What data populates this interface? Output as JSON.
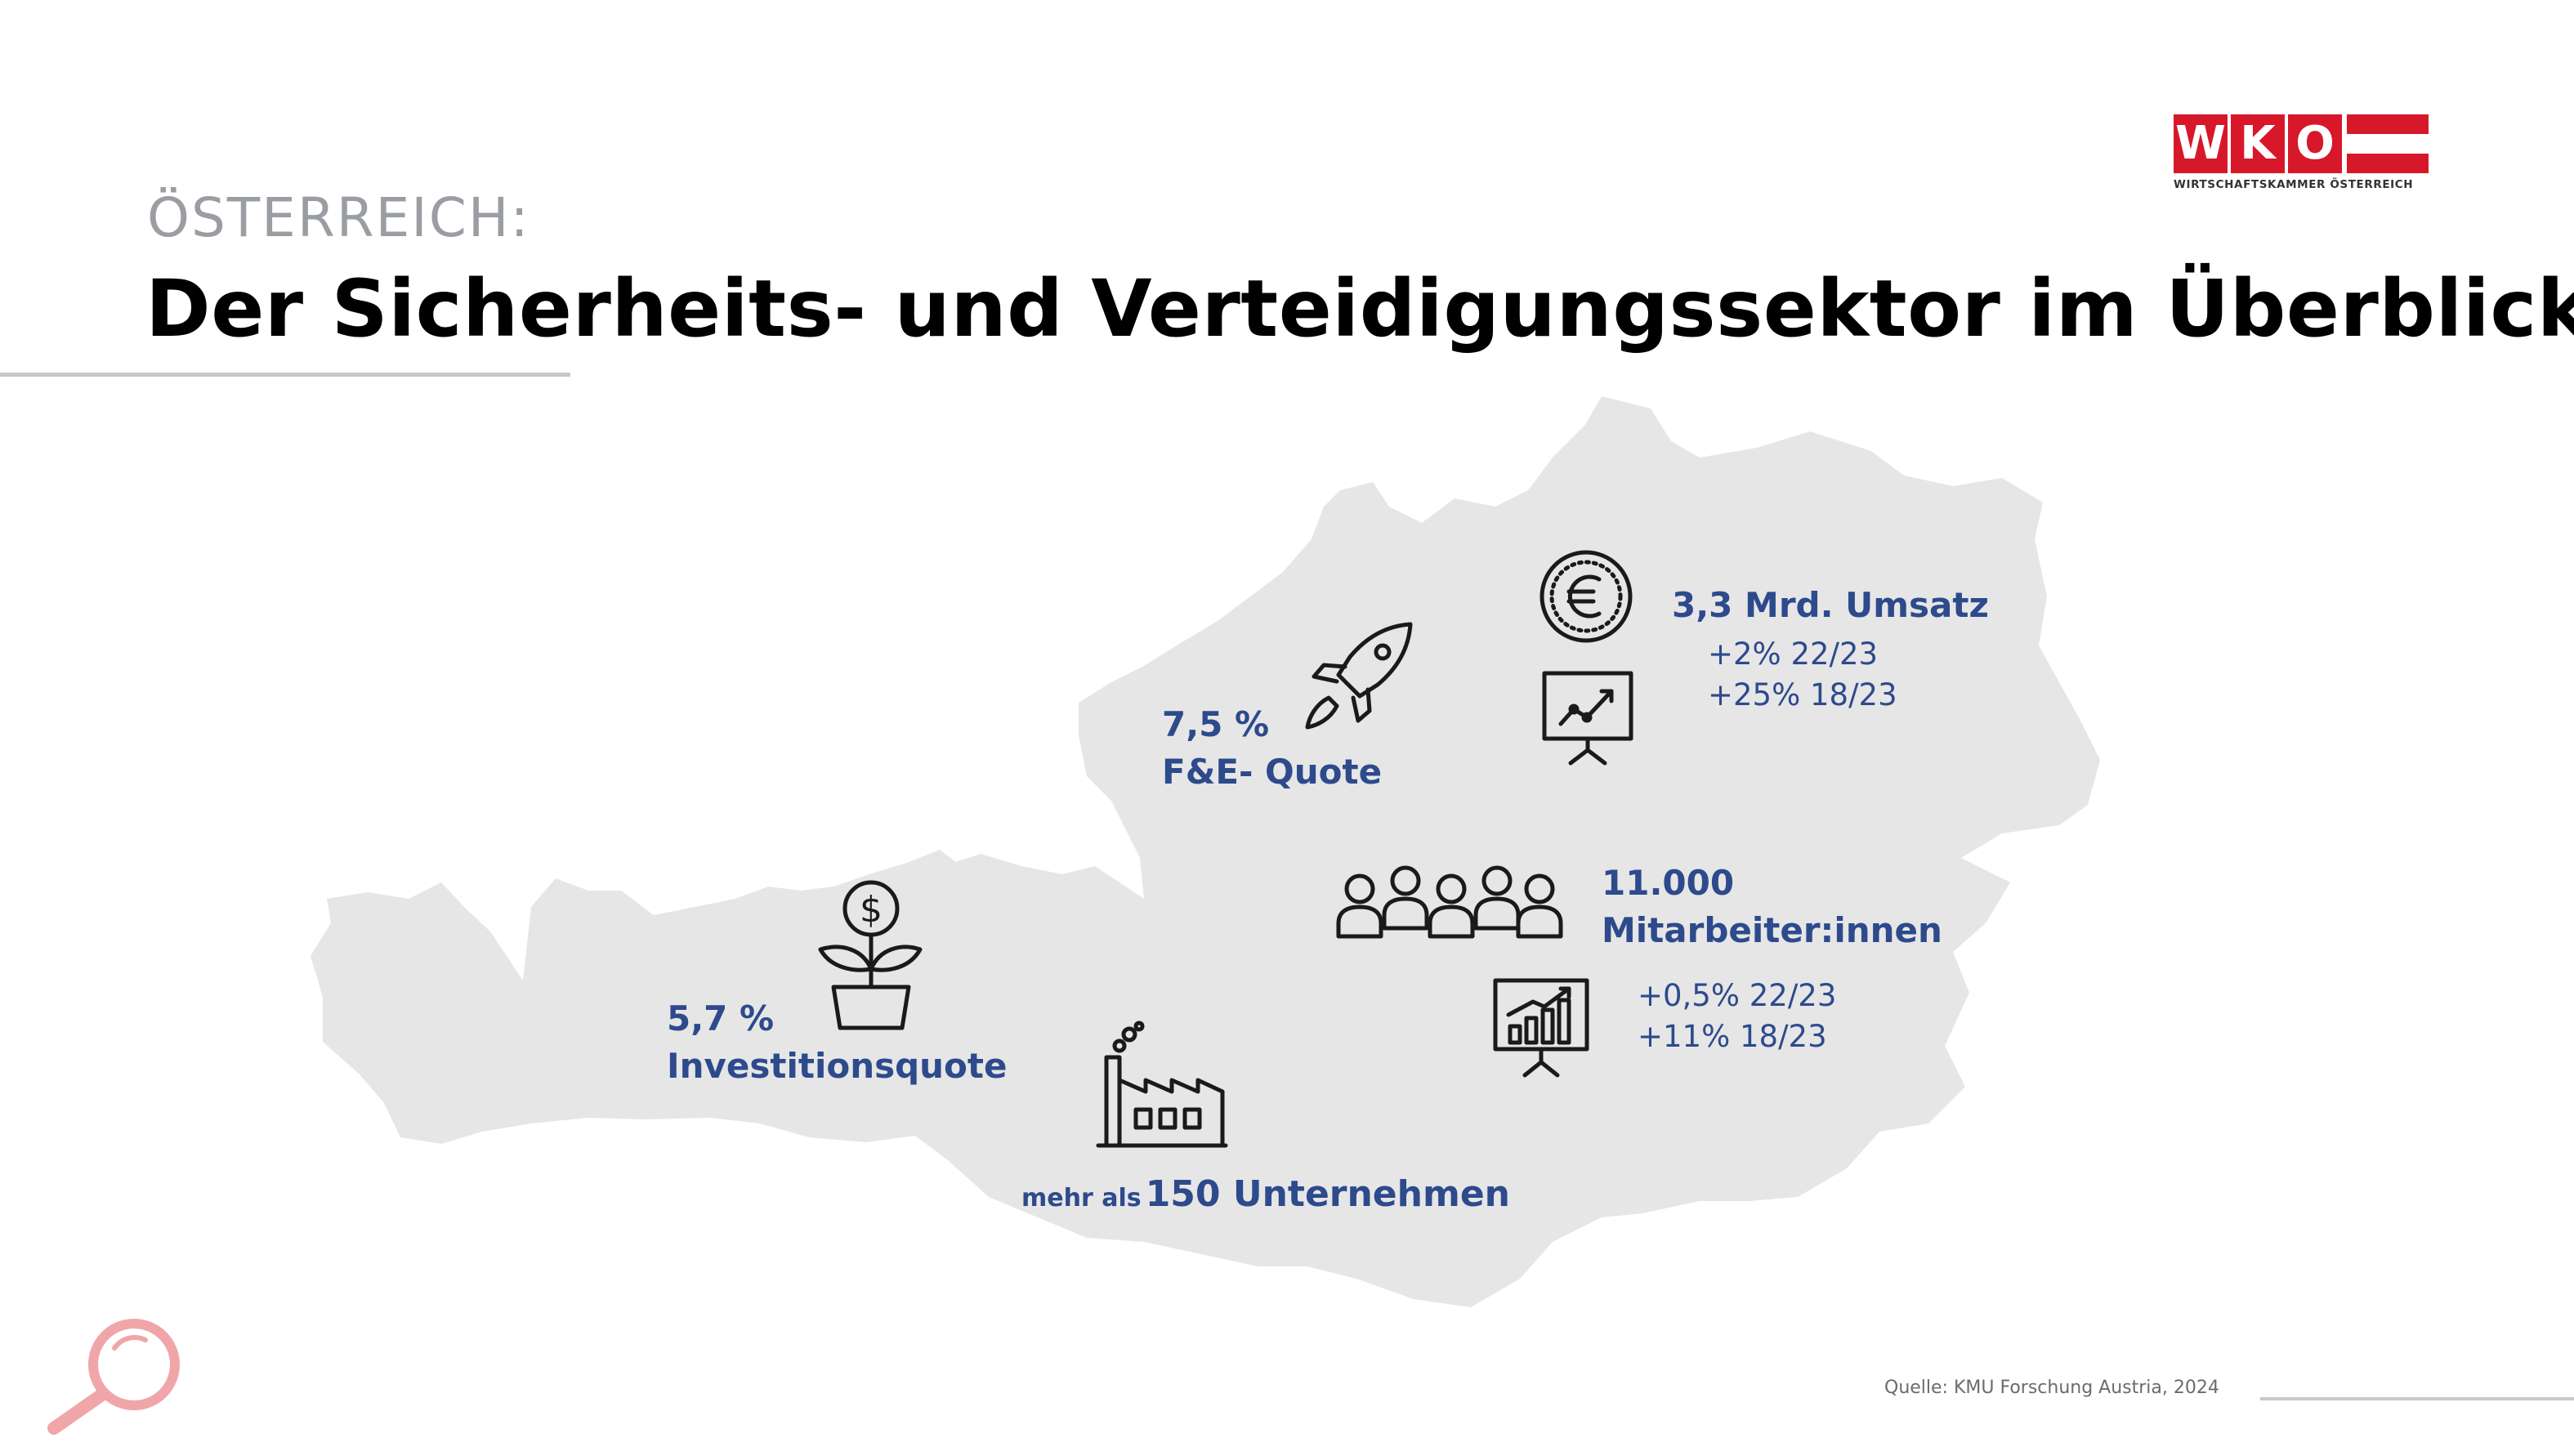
{
  "header": {
    "subtitle": "ÖSTERREICH:",
    "title": "Der Sicherheits- und Verteidigungssektor im Überblick"
  },
  "logo": {
    "letters": [
      "W",
      "K",
      "O"
    ],
    "tagline": "WIRTSCHAFTSKAMMER ÖSTERREICH"
  },
  "stats": {
    "umsatz": {
      "headline": "3,3 Mrd. Umsatz",
      "changes": [
        "+2% 22/23",
        "+25% 18/23"
      ]
    },
    "fe": {
      "value": "7,5 %",
      "label": "F&E- Quote"
    },
    "mitarbeiter": {
      "value": "11.000",
      "label": "Mitarbeiter:innen",
      "changes": [
        "+0,5% 22/23",
        "+11% 18/23"
      ]
    },
    "investition": {
      "value": "5,7 %",
      "label": "Investitionsquote"
    },
    "unternehmen": {
      "prefix": "mehr als",
      "value": "150 Unternehmen"
    }
  },
  "source": "Quelle: KMU Forschung Austria, 2024",
  "colors": {
    "accent_text": "#2d4a8c",
    "brand_red": "#d7182a",
    "map_fill": "#e6e6e6",
    "magnifier": "#f0a6a8"
  },
  "icons": [
    "euro-coin-icon",
    "presentation-chart-icon",
    "rocket-icon",
    "team-icon",
    "bar-chart-board-icon",
    "money-plant-icon",
    "factory-icon",
    "magnifier-icon"
  ]
}
